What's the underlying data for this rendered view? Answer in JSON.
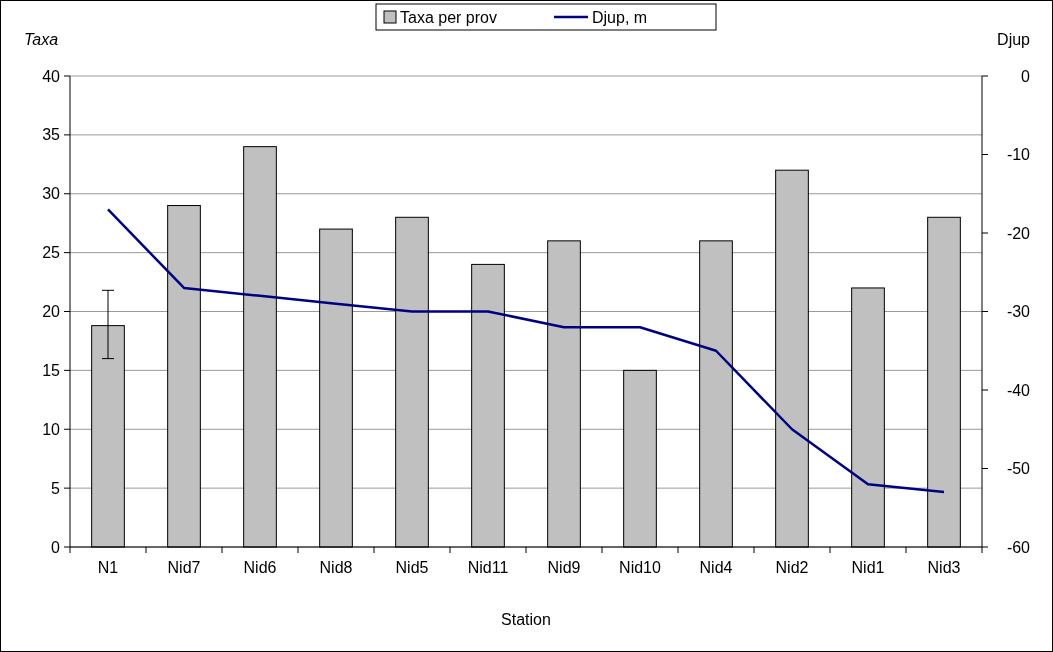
{
  "chart_data": {
    "type": "bar",
    "ylabel": "Taxa",
    "y2label": "Djup",
    "xlabel": "Station",
    "categories": [
      "N1",
      "Nid7",
      "Nid6",
      "Nid8",
      "Nid5",
      "Nid11",
      "Nid9",
      "Nid10",
      "Nid4",
      "Nid2",
      "Nid1",
      "Nid3"
    ],
    "series": [
      {
        "name": "Taxa per prov",
        "color": "#c0c0c0",
        "values": [
          18.8,
          29,
          34,
          27,
          28,
          24,
          26,
          15,
          26,
          32,
          22,
          28
        ],
        "errors": [
          [
            16,
            21.8
          ],
          null,
          null,
          null,
          null,
          null,
          null,
          null,
          null,
          null,
          null,
          null
        ]
      },
      {
        "name": "Djup, m",
        "type": "line",
        "axis": "y2",
        "color": "#000080",
        "values": [
          -17,
          -27,
          -28,
          -29,
          -30,
          -30,
          -32,
          -32,
          -35,
          -45,
          -52,
          -53
        ]
      }
    ],
    "ylim": [
      0,
      40
    ],
    "yticks": [
      0,
      5,
      10,
      15,
      20,
      25,
      30,
      35,
      40
    ],
    "y2lim": [
      -60,
      0
    ],
    "y2ticks": [
      -60,
      -50,
      -40,
      -30,
      -20,
      -10,
      0
    ],
    "grid": "y",
    "legend": "top",
    "marker": "none",
    "line_style": "solid"
  }
}
